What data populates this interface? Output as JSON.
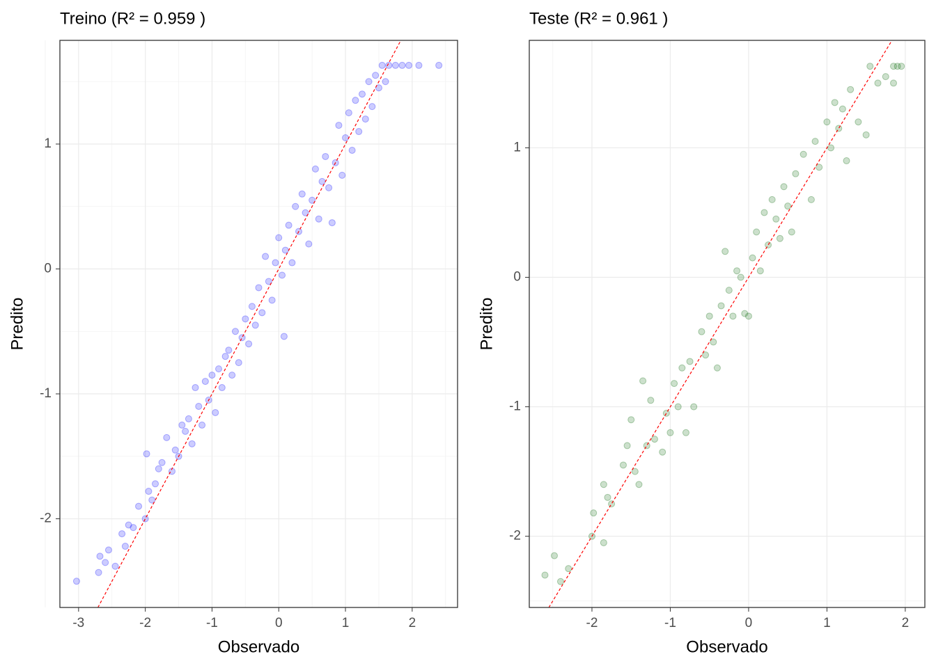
{
  "chart_data": [
    {
      "type": "scatter",
      "title": "Treino (R² = 0.959 )",
      "x_label": "Observado",
      "y_label": "Predito",
      "color": "#0000ff",
      "alpha": 0.2,
      "grid": true,
      "identity_line": true,
      "identity_color": "#ff0000",
      "xlim": [
        -3.28,
        2.68
      ],
      "ylim": [
        -2.71,
        1.83
      ],
      "xticks": [
        -3,
        -2,
        -1,
        0,
        1,
        2
      ],
      "yticks": [
        -2,
        -1,
        0,
        1
      ],
      "x": [
        -3.03,
        -2.7,
        -2.68,
        -2.6,
        -2.55,
        -2.45,
        -2.35,
        -2.3,
        -2.25,
        -2.18,
        -2.1,
        -2.0,
        -1.98,
        -1.95,
        -1.9,
        -1.85,
        -1.8,
        -1.75,
        -1.68,
        -1.6,
        -1.55,
        -1.5,
        -1.45,
        -1.4,
        -1.35,
        -1.3,
        -1.25,
        -1.2,
        -1.15,
        -1.1,
        -1.05,
        -1.0,
        -0.95,
        -0.9,
        -0.85,
        -0.8,
        -0.75,
        -0.7,
        -0.65,
        -0.6,
        -0.55,
        -0.5,
        -0.45,
        -0.4,
        -0.35,
        -0.3,
        -0.25,
        -0.2,
        -0.15,
        -0.1,
        -0.05,
        0.0,
        0.05,
        0.1,
        0.15,
        0.2,
        0.25,
        0.3,
        0.35,
        0.4,
        0.45,
        0.5,
        0.55,
        0.6,
        0.65,
        0.7,
        0.75,
        0.8,
        0.85,
        0.9,
        0.95,
        1.0,
        1.05,
        1.1,
        1.15,
        1.2,
        1.25,
        1.3,
        1.35,
        1.4,
        1.45,
        1.5,
        1.55,
        1.6,
        1.65,
        1.75,
        1.85,
        1.95,
        2.1,
        2.4,
        0.08
      ],
      "y": [
        -2.5,
        -2.43,
        -2.3,
        -2.35,
        -2.25,
        -2.38,
        -2.12,
        -2.22,
        -2.05,
        -2.07,
        -1.9,
        -2.0,
        -1.48,
        -1.78,
        -1.85,
        -1.72,
        -1.6,
        -1.55,
        -1.35,
        -1.62,
        -1.45,
        -1.5,
        -1.25,
        -1.3,
        -1.2,
        -1.4,
        -0.95,
        -1.1,
        -1.25,
        -0.9,
        -1.05,
        -0.85,
        -1.15,
        -0.8,
        -0.95,
        -0.7,
        -0.65,
        -0.85,
        -0.5,
        -0.75,
        -0.55,
        -0.4,
        -0.6,
        -0.3,
        -0.45,
        -0.15,
        -0.35,
        0.1,
        -0.1,
        -0.25,
        0.05,
        0.25,
        -0.05,
        0.15,
        0.35,
        0.05,
        0.5,
        0.3,
        0.6,
        0.45,
        0.2,
        0.55,
        0.8,
        0.4,
        0.7,
        0.9,
        0.65,
        0.37,
        0.85,
        1.15,
        0.75,
        1.05,
        1.25,
        0.95,
        1.35,
        1.1,
        1.4,
        1.2,
        1.5,
        1.3,
        1.55,
        1.45,
        1.63,
        1.5,
        1.63,
        1.63,
        1.63,
        1.63,
        1.63,
        1.63,
        -0.54
      ]
    },
    {
      "type": "scatter",
      "title": "Teste (R² = 0.961 )",
      "x_label": "Observado",
      "y_label": "Predito",
      "color": "#006400",
      "alpha": 0.2,
      "grid": true,
      "identity_line": true,
      "identity_color": "#ff0000",
      "xlim": [
        -2.8,
        2.25
      ],
      "ylim": [
        -2.55,
        1.83
      ],
      "xticks": [
        -2,
        -1,
        0,
        1,
        2
      ],
      "yticks": [
        -2,
        -1,
        0,
        1
      ],
      "x": [
        -2.6,
        -2.48,
        -2.4,
        -2.3,
        -2.0,
        -1.98,
        -1.85,
        -1.85,
        -1.8,
        -1.75,
        -1.6,
        -1.55,
        -1.5,
        -1.45,
        -1.4,
        -1.35,
        -1.3,
        -1.25,
        -1.2,
        -1.1,
        -1.05,
        -1.0,
        -0.95,
        -0.9,
        -0.85,
        -0.8,
        -0.75,
        -0.7,
        -0.6,
        -0.55,
        -0.5,
        -0.45,
        -0.4,
        -0.35,
        -0.3,
        -0.25,
        -0.2,
        -0.15,
        -0.1,
        -0.05,
        0.0,
        0.05,
        0.1,
        0.15,
        0.2,
        0.25,
        0.3,
        0.35,
        0.4,
        0.45,
        0.5,
        0.55,
        0.6,
        0.7,
        0.8,
        0.85,
        0.9,
        1.0,
        1.05,
        1.1,
        1.15,
        1.2,
        1.25,
        1.3,
        1.4,
        1.5,
        1.55,
        1.65,
        1.75,
        1.85,
        1.9,
        1.95,
        1.85
      ],
      "y": [
        -2.3,
        -2.15,
        -2.35,
        -2.25,
        -2.0,
        -1.82,
        -2.05,
        -1.6,
        -1.7,
        -1.75,
        -1.45,
        -1.3,
        -1.1,
        -1.5,
        -1.6,
        -0.8,
        -1.3,
        -0.95,
        -1.25,
        -1.35,
        -1.05,
        -1.2,
        -0.82,
        -1.0,
        -0.7,
        -1.2,
        -0.65,
        -1.0,
        -0.42,
        -0.6,
        -0.3,
        -0.5,
        -0.7,
        -0.22,
        0.2,
        -0.1,
        -0.3,
        0.05,
        0.0,
        -0.28,
        -0.3,
        0.15,
        0.35,
        0.05,
        0.5,
        0.25,
        0.6,
        0.45,
        0.3,
        0.7,
        0.55,
        0.35,
        0.8,
        0.95,
        0.6,
        1.05,
        0.85,
        1.2,
        1.0,
        1.35,
        1.15,
        1.3,
        0.9,
        1.45,
        1.2,
        1.1,
        1.63,
        1.5,
        1.55,
        1.63,
        1.63,
        1.63,
        1.5
      ]
    }
  ]
}
